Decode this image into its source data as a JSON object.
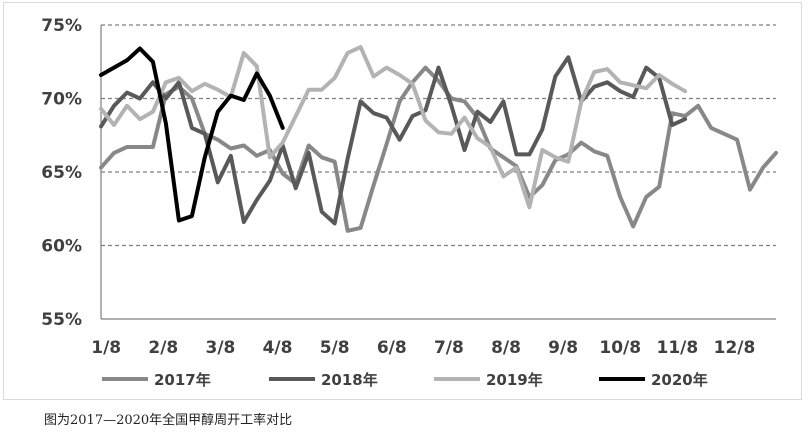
{
  "caption": "图为2017—2020年全国甲醇周开工率对比",
  "chart_data": {
    "type": "line",
    "x_tick_labels": [
      "1/8",
      "2/8",
      "3/8",
      "4/8",
      "5/8",
      "6/8",
      "7/8",
      "8/8",
      "9/8",
      "10/8",
      "11/8",
      "12/8"
    ],
    "y_tick_labels": [
      "55%",
      "60%",
      "65%",
      "70%",
      "75%"
    ],
    "ylim": [
      55,
      75
    ],
    "y_ticks": [
      55,
      60,
      65,
      70,
      75
    ],
    "xlim": [
      1,
      53
    ],
    "x_ticks": [
      1.4,
      5.8,
      10.2,
      14.6,
      19.0,
      23.4,
      27.8,
      32.2,
      36.6,
      41.0,
      45.4,
      49.8
    ],
    "grid": "horizontal-dashed",
    "legend_position": "bottom",
    "series": [
      {
        "name": "2017年",
        "color": "#888888",
        "width": 4,
        "points": [
          [
            1,
            65.3
          ],
          [
            2,
            66.3
          ],
          [
            3,
            66.7
          ],
          [
            4,
            66.7
          ],
          [
            5,
            66.7
          ],
          [
            6,
            70.3
          ],
          [
            7,
            70.8
          ],
          [
            8,
            70.0
          ],
          [
            9,
            67.6
          ],
          [
            10,
            67.2
          ],
          [
            11,
            66.6
          ],
          [
            12,
            66.8
          ],
          [
            13,
            66.1
          ],
          [
            14,
            66.5
          ],
          [
            15,
            64.9
          ],
          [
            16,
            64.2
          ],
          [
            17,
            66.8
          ],
          [
            18,
            66.0
          ],
          [
            19,
            65.7
          ],
          [
            20,
            61.0
          ],
          [
            21,
            61.2
          ],
          [
            22,
            64.1
          ],
          [
            23,
            66.9
          ],
          [
            24,
            69.8
          ],
          [
            25,
            71.1
          ],
          [
            26,
            72.1
          ],
          [
            27,
            71.2
          ],
          [
            28,
            70.0
          ],
          [
            29,
            69.8
          ],
          [
            30,
            68.7
          ],
          [
            31,
            66.6
          ],
          [
            32,
            66.0
          ],
          [
            33,
            65.4
          ],
          [
            34,
            63.3
          ],
          [
            35,
            64.1
          ],
          [
            36,
            65.8
          ],
          [
            37,
            66.2
          ],
          [
            38,
            67.0
          ],
          [
            39,
            66.4
          ],
          [
            40,
            66.1
          ],
          [
            41,
            63.3
          ],
          [
            42,
            61.3
          ],
          [
            43,
            63.3
          ],
          [
            44,
            64.0
          ],
          [
            45,
            69.0
          ],
          [
            46,
            68.8
          ],
          [
            47,
            69.5
          ],
          [
            48,
            68.0
          ],
          [
            49,
            67.6
          ],
          [
            50,
            67.2
          ],
          [
            51,
            63.8
          ],
          [
            52,
            65.3
          ],
          [
            53,
            66.3
          ]
        ]
      },
      {
        "name": "2018年",
        "color": "#595959",
        "width": 4,
        "points": [
          [
            1,
            68.1
          ],
          [
            2,
            69.5
          ],
          [
            3,
            70.4
          ],
          [
            4,
            70.0
          ],
          [
            5,
            71.1
          ],
          [
            6,
            70.0
          ],
          [
            7,
            71.1
          ],
          [
            8,
            68.0
          ],
          [
            9,
            67.6
          ],
          [
            10,
            64.3
          ],
          [
            11,
            66.1
          ],
          [
            12,
            61.6
          ],
          [
            13,
            63.1
          ],
          [
            14,
            64.4
          ],
          [
            15,
            66.8
          ],
          [
            16,
            63.9
          ],
          [
            17,
            66.3
          ],
          [
            18,
            62.3
          ],
          [
            19,
            61.5
          ],
          [
            20,
            65.9
          ],
          [
            21,
            69.8
          ],
          [
            22,
            69.0
          ],
          [
            23,
            68.7
          ],
          [
            24,
            67.2
          ],
          [
            25,
            68.8
          ],
          [
            26,
            69.2
          ],
          [
            27,
            72.1
          ],
          [
            28,
            69.5
          ],
          [
            29,
            66.5
          ],
          [
            30,
            69.1
          ],
          [
            31,
            68.4
          ],
          [
            32,
            69.8
          ],
          [
            33,
            66.2
          ],
          [
            34,
            66.2
          ],
          [
            35,
            67.9
          ],
          [
            36,
            71.5
          ],
          [
            37,
            72.8
          ],
          [
            38,
            69.8
          ],
          [
            39,
            70.8
          ],
          [
            40,
            71.1
          ],
          [
            41,
            70.5
          ],
          [
            42,
            70.1
          ],
          [
            43,
            72.1
          ],
          [
            44,
            71.4
          ],
          [
            45,
            68.2
          ],
          [
            46,
            68.6
          ]
        ]
      },
      {
        "name": "2019年",
        "color": "#b3b3b3",
        "width": 4,
        "points": [
          [
            1,
            69.3
          ],
          [
            2,
            68.2
          ],
          [
            3,
            69.5
          ],
          [
            4,
            68.6
          ],
          [
            5,
            69.1
          ],
          [
            6,
            71.1
          ],
          [
            7,
            71.4
          ],
          [
            8,
            70.5
          ],
          [
            9,
            71.0
          ],
          [
            10,
            70.6
          ],
          [
            11,
            70.1
          ],
          [
            12,
            73.1
          ],
          [
            13,
            72.2
          ],
          [
            14,
            66.0
          ],
          [
            15,
            67.0
          ],
          [
            16,
            68.8
          ],
          [
            17,
            70.6
          ],
          [
            18,
            70.6
          ],
          [
            19,
            71.4
          ],
          [
            20,
            73.1
          ],
          [
            21,
            73.5
          ],
          [
            22,
            71.5
          ],
          [
            23,
            72.1
          ],
          [
            24,
            71.6
          ],
          [
            25,
            71.0
          ],
          [
            26,
            68.5
          ],
          [
            27,
            67.7
          ],
          [
            28,
            67.6
          ],
          [
            29,
            68.7
          ],
          [
            30,
            67.3
          ],
          [
            31,
            66.7
          ],
          [
            32,
            64.7
          ],
          [
            33,
            65.3
          ],
          [
            34,
            62.6
          ],
          [
            35,
            66.5
          ],
          [
            36,
            66.0
          ],
          [
            37,
            65.7
          ],
          [
            38,
            69.8
          ],
          [
            39,
            71.8
          ],
          [
            40,
            72.0
          ],
          [
            41,
            71.1
          ],
          [
            42,
            70.9
          ],
          [
            43,
            70.7
          ],
          [
            44,
            71.6
          ],
          [
            45,
            71.0
          ],
          [
            46,
            70.5
          ]
        ]
      },
      {
        "name": "2020年",
        "color": "#000000",
        "width": 4,
        "points": [
          [
            1,
            71.6
          ],
          [
            2,
            72.1
          ],
          [
            3,
            72.6
          ],
          [
            4,
            73.4
          ],
          [
            5,
            72.5
          ],
          [
            6,
            68.3
          ],
          [
            7,
            61.7
          ],
          [
            8,
            62.0
          ],
          [
            9,
            66.0
          ],
          [
            10,
            69.1
          ],
          [
            11,
            70.2
          ],
          [
            12,
            69.9
          ],
          [
            13,
            71.7
          ],
          [
            14,
            70.2
          ],
          [
            15,
            68.0
          ]
        ]
      }
    ]
  }
}
